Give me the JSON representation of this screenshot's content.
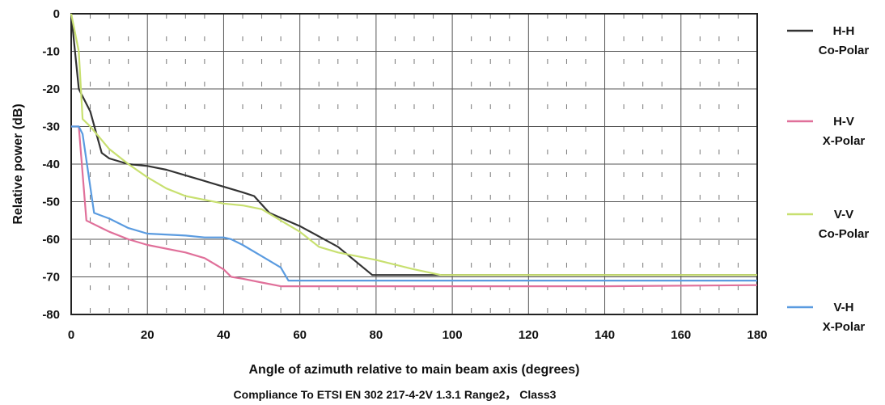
{
  "chart_data": {
    "type": "line",
    "title": "",
    "xlabel": "Angle of azimuth relative to main beam axis (degrees)",
    "ylabel": "Relative power (dB)",
    "caption": "Compliance To ETSI EN 302 217-4-2V 1.3.1 Range2， Class3",
    "xlim": [
      0,
      180
    ],
    "ylim": [
      -80,
      0
    ],
    "xticks": [
      "0",
      "20",
      "40",
      "60",
      "80",
      "100",
      "120",
      "140",
      "160",
      "180"
    ],
    "yticks": [
      "0",
      "-10",
      "-20",
      "-30",
      "-40",
      "-50",
      "-60",
      "-70",
      "-80"
    ],
    "grid": true,
    "legend_position": "right",
    "series": [
      {
        "name": "H-H Co-Polar",
        "legend_line1": "H-H",
        "legend_line2": "Co-Polar",
        "color": "#333333",
        "x": [
          0,
          2,
          5,
          8,
          10,
          15,
          20,
          25,
          30,
          40,
          45,
          48,
          52,
          60,
          70,
          79,
          100,
          140,
          180
        ],
        "y": [
          0,
          -20,
          -26,
          -37,
          -38.5,
          -40,
          -40.5,
          -41.5,
          -43,
          -46,
          -47.5,
          -48.5,
          -53,
          -56.5,
          -62,
          -69.5,
          -69.5,
          -69.5,
          -69.5
        ]
      },
      {
        "name": "H-V X-Polar",
        "legend_line1": "H-V",
        "legend_line2": "X-Polar",
        "color": "#e0709a",
        "x": [
          0,
          2,
          4,
          10,
          15,
          20,
          30,
          35,
          40,
          42,
          45,
          50,
          55,
          100,
          140,
          180
        ],
        "y": [
          -30,
          -30,
          -55,
          -58,
          -60,
          -61.5,
          -63.5,
          -65,
          -68,
          -70,
          -70.5,
          -71.5,
          -72.5,
          -72.5,
          -72.5,
          -72.2
        ]
      },
      {
        "name": "V-V Co-Polar",
        "legend_line1": "V-V",
        "legend_line2": "Co-Polar",
        "color": "#c8e070",
        "x": [
          0,
          2,
          3,
          5,
          10,
          15,
          20,
          25,
          30,
          35,
          40,
          45,
          50,
          55,
          60,
          65,
          70,
          80,
          90,
          97,
          100,
          140,
          180
        ],
        "y": [
          0,
          -10,
          -28,
          -30,
          -36,
          -40,
          -43.5,
          -46.5,
          -48.5,
          -49.5,
          -50.5,
          -51,
          -52,
          -55,
          -58,
          -62,
          -63.5,
          -65.5,
          -68,
          -69.5,
          -69.5,
          -69.5,
          -69.5
        ]
      },
      {
        "name": "V-H X-Polar",
        "legend_line1": "V-H",
        "legend_line2": "X-Polar",
        "color": "#5a9be0",
        "x": [
          0,
          2,
          3,
          6,
          10,
          15,
          20,
          30,
          35,
          40,
          42,
          45,
          50,
          55,
          57,
          60,
          100,
          140,
          180
        ],
        "y": [
          -30,
          -30,
          -32,
          -53,
          -54.5,
          -57,
          -58.5,
          -59,
          -59.5,
          -59.5,
          -60,
          -61.5,
          -64.5,
          -67.5,
          -71,
          -71,
          -71,
          -71,
          -71
        ]
      }
    ]
  }
}
